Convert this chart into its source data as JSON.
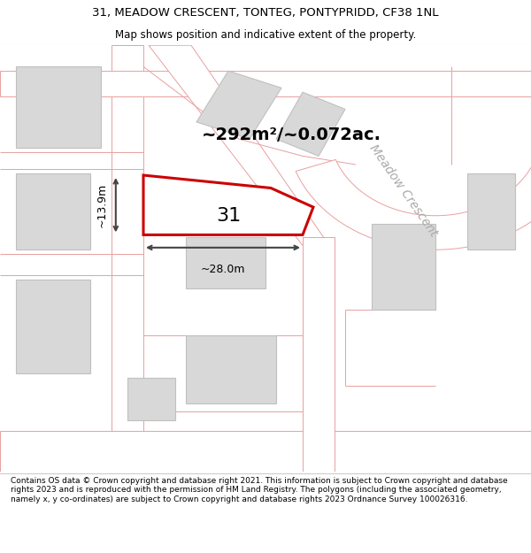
{
  "title_line1": "31, MEADOW CRESCENT, TONTEG, PONTYPRIDD, CF38 1NL",
  "title_line2": "Map shows position and indicative extent of the property.",
  "area_label": "~292m²/~0.072ac.",
  "plot_number": "31",
  "width_label": "~28.0m",
  "height_label": "~13.9m",
  "street_label": "Meadow Crescent",
  "footer": "Contains OS data © Crown copyright and database right 2021. This information is subject to Crown copyright and database rights 2023 and is reproduced with the permission of HM Land Registry. The polygons (including the associated geometry, namely x, y co-ordinates) are subject to Crown copyright and database rights 2023 Ordnance Survey 100026316.",
  "bg_color": "#f2f0ed",
  "plot_outline": "#cc0000",
  "building_fill": "#d8d8d8",
  "building_ec": "#c0c0c0",
  "road_color": "#ffffff",
  "road_outline": "#e8a0a0",
  "dim_line_color": "#444444",
  "street_label_color": "#aaaaaa",
  "title_fontsize": 9.5,
  "subtitle_fontsize": 8.5,
  "area_fontsize": 14,
  "plot_num_fontsize": 16,
  "dim_fontsize": 9,
  "street_fontsize": 10,
  "footer_fontsize": 6.5
}
